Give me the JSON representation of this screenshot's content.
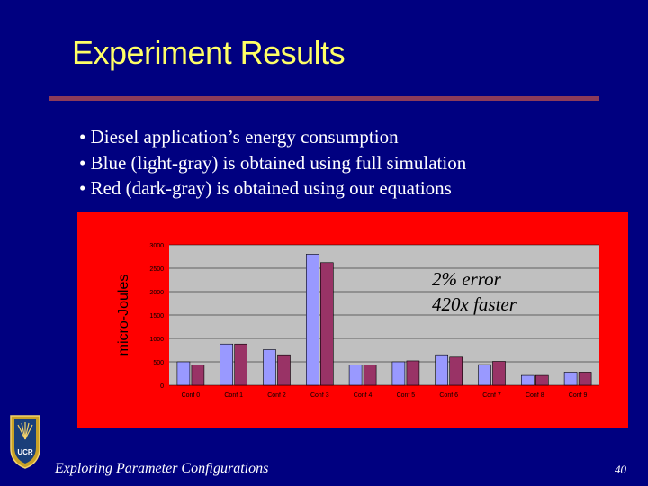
{
  "slide": {
    "title": "Experiment Results",
    "bullets": [
      "Diesel application’s energy consumption",
      "Blue (light-gray) is obtained using full simulation",
      "Red (dark-gray) is obtained using our equations"
    ],
    "overlay": {
      "line1": "2% error",
      "line2": "420x faster"
    },
    "footer": "Exploring Parameter Configurations",
    "page_number": "40",
    "logo_text": "UCR",
    "colors": {
      "background": "#000080",
      "title": "#ffff66",
      "rule": "#8c3b5a",
      "chart_frame": "#ff0000",
      "plot_area": "#c0c0c0",
      "series_blue": "#9999ff",
      "series_red": "#993366"
    }
  },
  "chart_data": {
    "type": "bar",
    "categories": [
      "Conf 0",
      "Conf 1",
      "Conf 2",
      "Conf 3",
      "Conf 4",
      "Conf 5",
      "Conf 6",
      "Conf 7",
      "Conf 8",
      "Conf 9"
    ],
    "series": [
      {
        "values": [
          500,
          880,
          760,
          2800,
          430,
          500,
          650,
          440,
          210,
          280
        ]
      },
      {
        "values": [
          430,
          880,
          650,
          2620,
          430,
          520,
          600,
          510,
          210,
          280
        ]
      }
    ],
    "ylabel": "micro-Joules",
    "yticks": [
      0,
      500,
      1000,
      1500,
      2000,
      2500,
      3000
    ],
    "ylim": [
      0,
      3000
    ],
    "grid": true,
    "legend": "none"
  }
}
